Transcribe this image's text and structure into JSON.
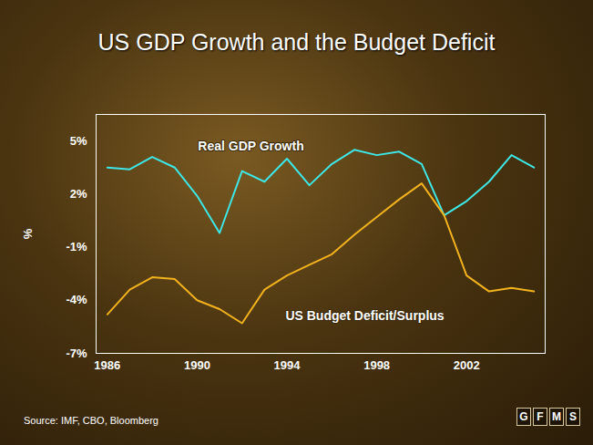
{
  "chart_data": {
    "type": "line",
    "title": "US GDP Growth and the Budget Deficit",
    "y_label": "%",
    "x": [
      1986,
      1987,
      1988,
      1989,
      1990,
      1991,
      1992,
      1993,
      1994,
      1995,
      1996,
      1997,
      1998,
      1999,
      2000,
      2001,
      2002,
      2003,
      2004,
      2005
    ],
    "series": [
      {
        "name": "Real GDP Growth",
        "color": "#3ee6e6",
        "values": [
          3.5,
          3.4,
          4.1,
          3.5,
          1.9,
          -0.2,
          3.3,
          2.7,
          4.0,
          2.5,
          3.7,
          4.5,
          4.2,
          4.4,
          3.7,
          0.8,
          1.6,
          2.7,
          4.2,
          3.5
        ]
      },
      {
        "name": "US Budget Deficit/Surplus",
        "color": "#f2b21e",
        "values": [
          -4.8,
          -3.4,
          -2.7,
          -2.8,
          -4.0,
          -4.5,
          -5.3,
          -3.4,
          -2.6,
          -2.0,
          -1.4,
          -0.3,
          0.7,
          1.7,
          2.6,
          0.8,
          -2.6,
          -3.5,
          -3.3,
          -3.5
        ]
      }
    ],
    "xlim": [
      1985.5,
      2005.5
    ],
    "xticks": [
      1986,
      1990,
      1994,
      1998,
      2002
    ],
    "ylim": [
      -7,
      6.5
    ],
    "yticks": [
      {
        "value": -7,
        "label": "-7%"
      },
      {
        "value": -4,
        "label": "-4%"
      },
      {
        "value": -1,
        "label": "-1%"
      },
      {
        "value": 2,
        "label": "2%"
      },
      {
        "value": 5,
        "label": "5%"
      }
    ],
    "grid": false,
    "source": "Source: IMF, CBO, Bloomberg",
    "logo": "GFMS"
  }
}
